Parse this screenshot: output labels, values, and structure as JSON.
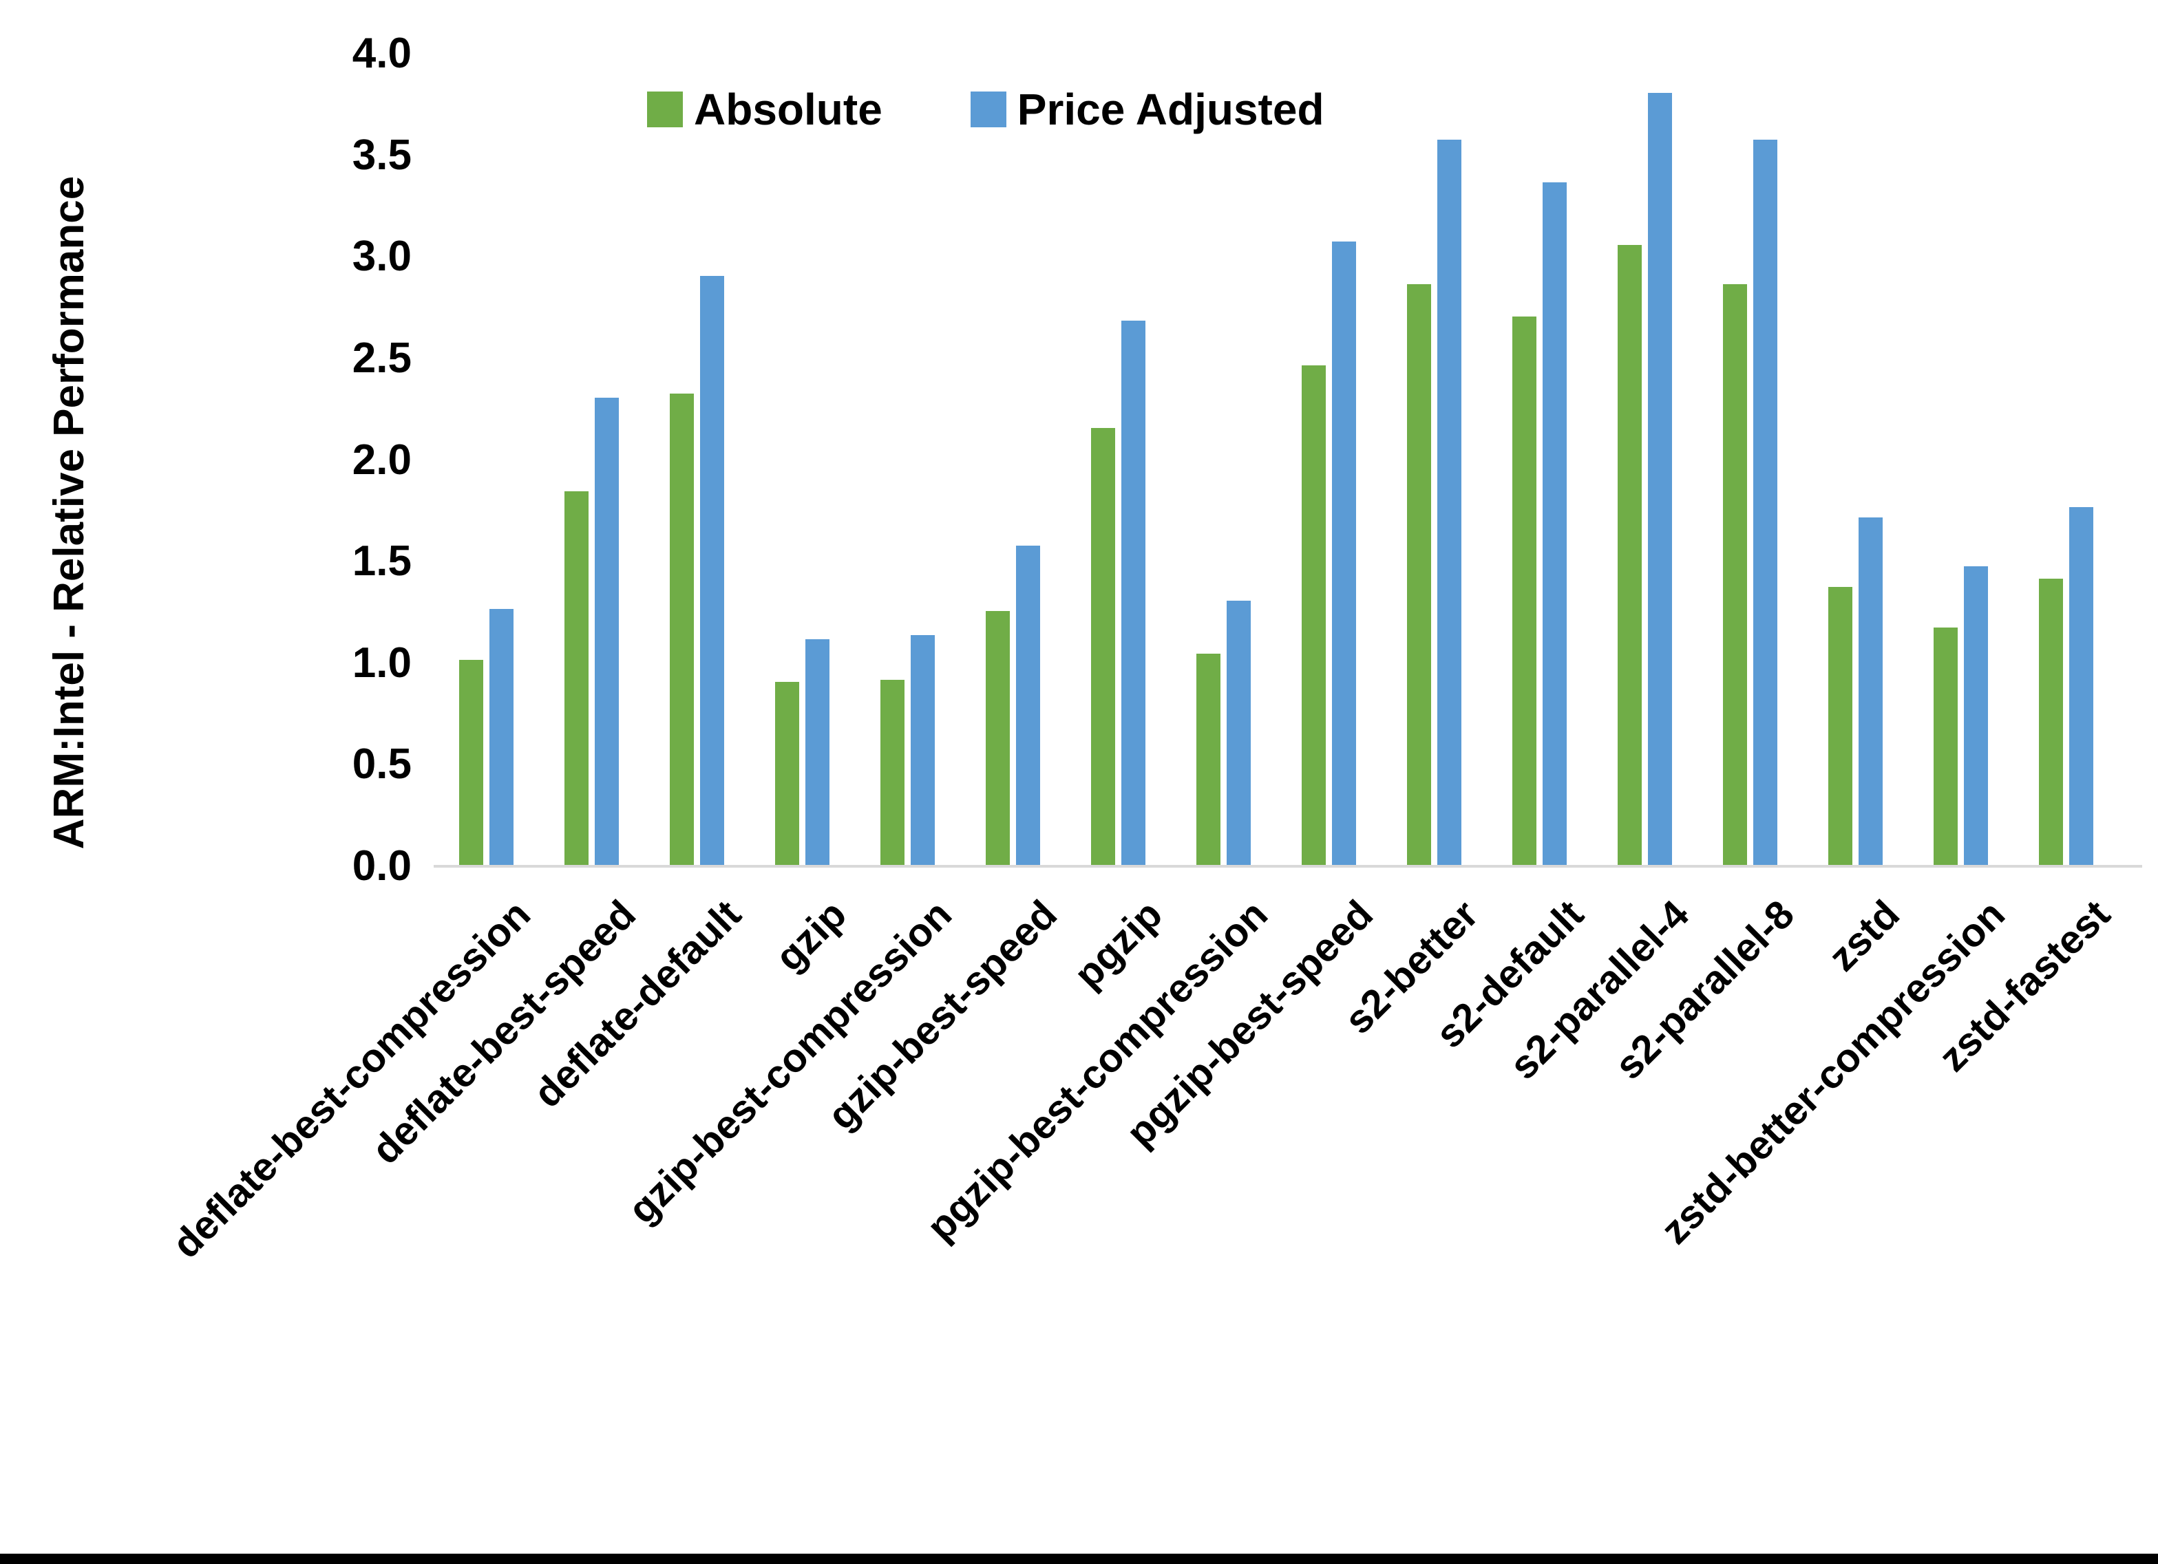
{
  "chart_data": {
    "type": "bar",
    "title": "",
    "ylabel": "ARM:Intel - Relative Performance",
    "xlabel": "",
    "ylim": [
      0.0,
      4.0
    ],
    "ytick_step": 0.5,
    "grid": false,
    "legend_position": "top-center",
    "categories": [
      "deflate-best-compression",
      "deflate-best-speed",
      "deflate-default",
      "gzip",
      "gzip-best-compression",
      "gzip-best-speed",
      "pgzip",
      "pgzip-best-compression",
      "pgzip-best-speed",
      "s2-better",
      "s2-default",
      "s2-parallel-4",
      "s2-parallel-8",
      "zstd",
      "zstd-better-compression",
      "zstd-fastest"
    ],
    "series": [
      {
        "name": "Absolute",
        "color": "#70AD47",
        "values": [
          1.01,
          1.84,
          2.32,
          0.9,
          0.91,
          1.25,
          2.15,
          1.04,
          2.46,
          2.86,
          2.7,
          3.05,
          2.86,
          1.37,
          1.17,
          1.41
        ]
      },
      {
        "name": "Price Adjusted",
        "color": "#5B9BD5",
        "values": [
          1.26,
          2.3,
          2.9,
          1.11,
          1.13,
          1.57,
          2.68,
          1.3,
          3.07,
          3.57,
          3.36,
          3.8,
          3.57,
          1.71,
          1.47,
          1.76
        ]
      }
    ],
    "axis_line_color": "#D9D9D9",
    "text_color": "#000000"
  }
}
